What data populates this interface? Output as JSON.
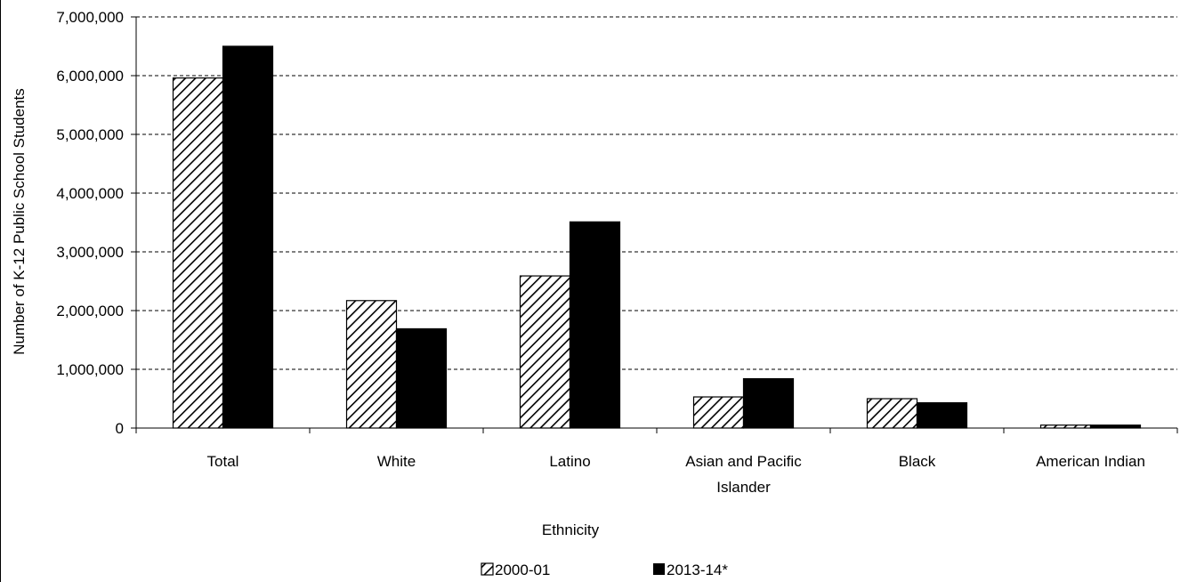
{
  "chart_data": {
    "type": "bar",
    "title": "",
    "xlabel": "Ethnicity",
    "ylabel": "Number of K-12 Public School Students",
    "ylim": [
      0,
      7000000
    ],
    "yticks": [
      "0",
      "1,000,000",
      "2,000,000",
      "3,000,000",
      "4,000,000",
      "5,000,000",
      "6,000,000",
      "7,000,000"
    ],
    "categories": [
      [
        "Total"
      ],
      [
        "White"
      ],
      [
        "Latino"
      ],
      [
        "Asian and Pacific",
        "Islander"
      ],
      [
        "Black"
      ],
      [
        "American Indian"
      ]
    ],
    "series": [
      {
        "name": "2000-01",
        "pattern": "hatched",
        "values": [
          5960000,
          2170000,
          2590000,
          530000,
          500000,
          50000
        ]
      },
      {
        "name": "2013-14*",
        "pattern": "solid",
        "values": [
          6500000,
          1690000,
          3510000,
          840000,
          430000,
          50000
        ]
      }
    ],
    "grid": "dashed horizontal",
    "legend_position": "bottom"
  },
  "colors": {
    "bar_solid": "#000000",
    "hatch": "#000000",
    "grid": "#000000"
  }
}
